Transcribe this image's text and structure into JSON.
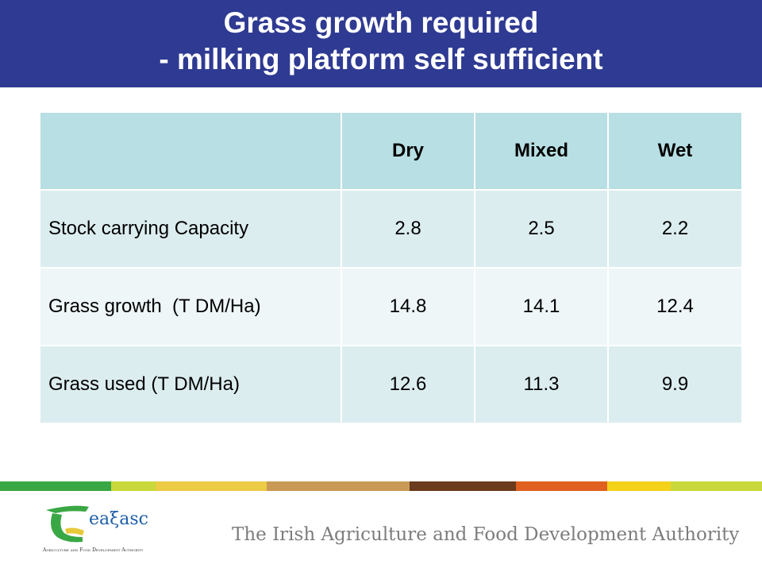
{
  "slide": {
    "title_line1": "Grass growth required",
    "title_line2": "- milking platform self sufficient",
    "title_bar_color": "#2f3a92"
  },
  "table": {
    "columns": [
      "",
      "Dry",
      "Mixed",
      "Wet"
    ],
    "rows": [
      {
        "label": "Stock carrying Capacity",
        "values": [
          "2.8",
          "2.5",
          "2.2"
        ]
      },
      {
        "label": "Grass growth  (T DM/Ha)",
        "values": [
          "14.8",
          "14.1",
          "12.4"
        ]
      },
      {
        "label": "Grass used (T DM/Ha)",
        "values": [
          "12.6",
          "11.3",
          "9.9"
        ]
      }
    ]
  },
  "footer": {
    "logo_text": "eaξasc",
    "logo_subtext": "Agriculture and Food Development Authority",
    "tagline": "The Irish Agriculture and Food Development Authority",
    "stripe_colors": [
      "#3aa745",
      "#c9d83a",
      "#eccb45",
      "#c99a55",
      "#6a3b1c",
      "#e0601f",
      "#f4d21a",
      "#c9d83a"
    ]
  }
}
